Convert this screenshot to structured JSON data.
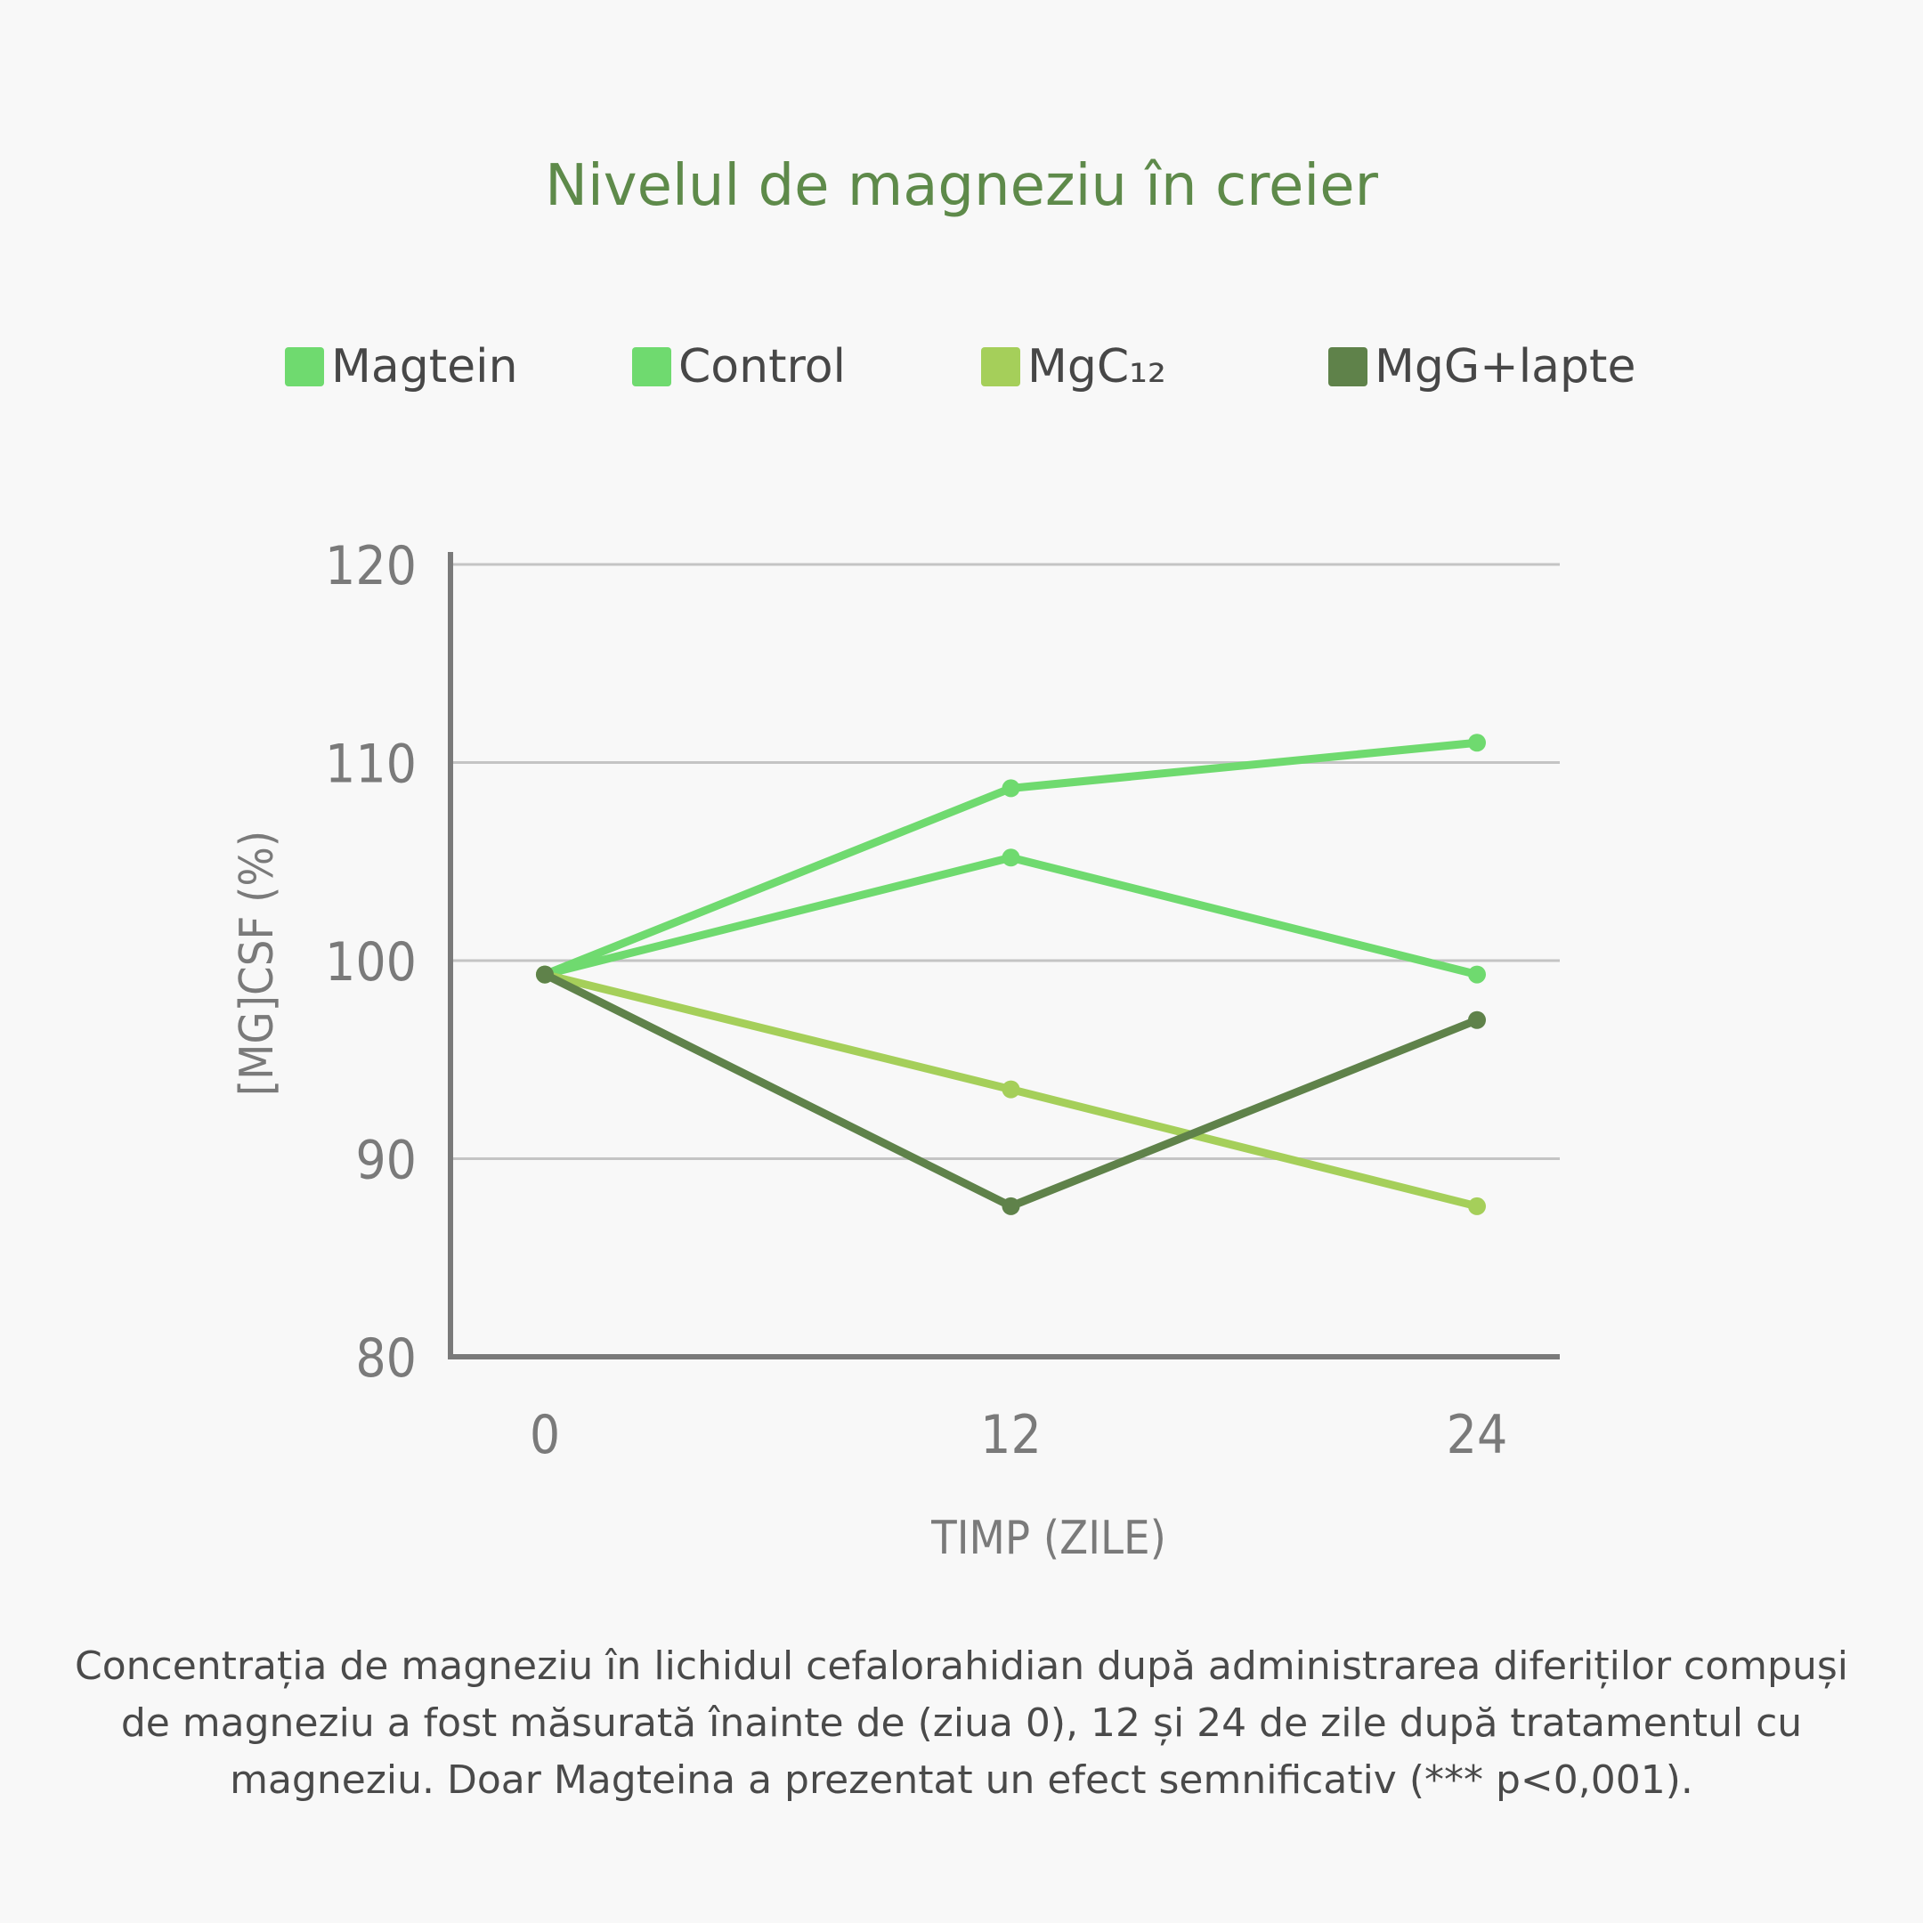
{
  "chart_data": {
    "type": "line",
    "title": "Nivelul de magneziu în creier",
    "xlabel": "TIMP (ZILE)",
    "ylabel": "[MG]CSF (%)",
    "x": [
      0,
      12,
      24
    ],
    "x_tick_labels": [
      "0",
      "12",
      "24"
    ],
    "y_ticks": [
      80,
      90,
      100,
      110,
      120
    ],
    "ylim": [
      80,
      120
    ],
    "grid": true,
    "legend_position": "top",
    "series": [
      {
        "name": "Magtein",
        "color": "#6fda6f",
        "values": [
          99.3,
          108.7,
          111.0
        ]
      },
      {
        "name": "Control",
        "color": "#6fda6f",
        "values": [
          99.3,
          105.2,
          99.3
        ]
      },
      {
        "name": "MgC₁₂",
        "color": "#a5cf5a",
        "values": [
          99.3,
          93.5,
          87.6
        ]
      },
      {
        "name": "MgG+lapte",
        "color": "#5f824a",
        "values": [
          99.3,
          87.6,
          97.0
        ]
      }
    ]
  },
  "caption": "Concentrația de magneziu în lichidul cefalorahidian după administrarea diferiților compuși de magneziu a fost măsurată înainte de (ziua 0), 12 și 24 de zile după tratamentul cu magneziu. Doar Magteina a prezentat un efect semnificativ (*** p<0,001)."
}
